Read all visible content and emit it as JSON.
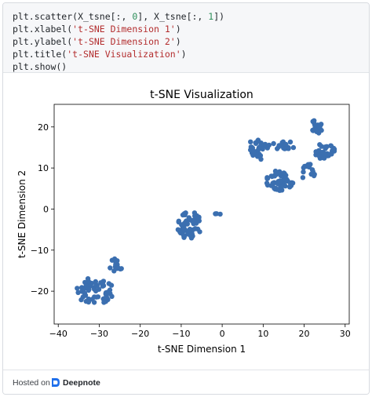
{
  "code": {
    "line1": {
      "a": "plt.scatter(X_tsne[:, ",
      "b": "0",
      "c": "], X_tsne[:, ",
      "d": "1",
      "e": "])"
    },
    "line2": {
      "a": "plt.xlabel(",
      "b": "'t-SNE Dimension 1'",
      "c": ")"
    },
    "line3": {
      "a": "plt.ylabel(",
      "b": "'t-SNE Dimension 2'",
      "c": ")"
    },
    "line4": {
      "a": "plt.title(",
      "b": "'t-SNE Visualization'",
      "c": ")"
    },
    "line5": "plt.show()"
  },
  "footer": {
    "hosted_on": "Hosted on",
    "brand": "Deepnote",
    "logo_icon": "deepnote-logo-icon"
  },
  "colors": {
    "marker": "#3b6fb0",
    "code_bg": "#f6f7f9",
    "string": "#b32d2e",
    "number": "#2f8f5b"
  },
  "chart_data": {
    "type": "scatter",
    "title": "t-SNE Visualization",
    "xlabel": "t-SNE Dimension 1",
    "ylabel": "t-SNE Dimension 2",
    "xlim": [
      -41,
      31
    ],
    "ylim": [
      -28,
      25.5
    ],
    "xticks": [
      -40,
      -30,
      -20,
      -10,
      0,
      10,
      20,
      30
    ],
    "yticks": [
      -20,
      -10,
      0,
      10,
      20
    ],
    "grid": false,
    "clusters": [
      {
        "center": [
          -31,
          -20
        ],
        "spread": [
          4.5,
          3.5
        ],
        "count": 55,
        "seed": 11
      },
      {
        "center": [
          -26,
          -14
        ],
        "spread": [
          1.5,
          2.0
        ],
        "count": 18,
        "seed": 12
      },
      {
        "center": [
          -8,
          -4
        ],
        "spread": [
          3.0,
          3.5
        ],
        "count": 60,
        "seed": 21
      },
      {
        "center": [
          -1,
          -1
        ],
        "spread": [
          0.8,
          0.5
        ],
        "count": 3,
        "seed": 22
      },
      {
        "center": [
          9,
          15
        ],
        "spread": [
          2.5,
          3.0
        ],
        "count": 35,
        "seed": 31
      },
      {
        "center": [
          15,
          15.5
        ],
        "spread": [
          3.0,
          1.0
        ],
        "count": 20,
        "seed": 32
      },
      {
        "center": [
          14,
          7
        ],
        "spread": [
          3.5,
          2.5
        ],
        "count": 55,
        "seed": 33
      },
      {
        "center": [
          23,
          20
        ],
        "spread": [
          1.5,
          1.8
        ],
        "count": 25,
        "seed": 34
      },
      {
        "center": [
          25,
          14
        ],
        "spread": [
          2.5,
          2.0
        ],
        "count": 35,
        "seed": 35
      },
      {
        "center": [
          21,
          9
        ],
        "spread": [
          2.0,
          2.0
        ],
        "count": 15,
        "seed": 36
      }
    ]
  }
}
